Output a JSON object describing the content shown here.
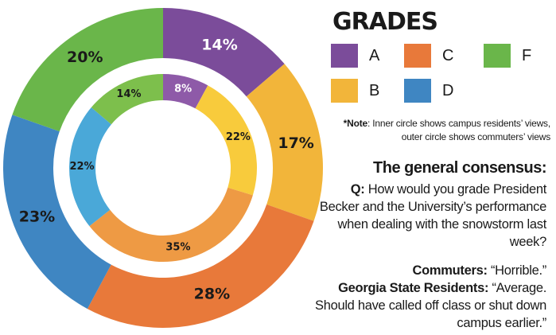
{
  "legend": {
    "title": "GRADES",
    "items": [
      {
        "label": "A",
        "color": "#7b4c9a"
      },
      {
        "label": "C",
        "color": "#e8793a"
      },
      {
        "label": "F",
        "color": "#6ab64a"
      },
      {
        "label": "B",
        "color": "#f2b53a"
      },
      {
        "label": "D",
        "color": "#3f86c2"
      }
    ]
  },
  "note": {
    "prefix": "*Note",
    "text": ": Inner circle shows campus residents’ views, outer circle shows commuters’ views"
  },
  "consensus": {
    "heading": "The general consensus:",
    "q_prefix": "Q:",
    "question": " How would you grade President Becker and the University’s performance when dealing with the snowstorm last week?",
    "commuters_prefix": "Commuters:",
    "commuters_answer": " “Horrible.”",
    "residents_prefix": "Georgia State Residents:",
    "residents_answer": " “Average. Should have called off class or shut down campus earlier.”"
  },
  "chart_data": {
    "type": "donut",
    "categories": [
      "A",
      "B",
      "C",
      "D",
      "F"
    ],
    "colors": {
      "outer": [
        "#7b4c9a",
        "#f2b53a",
        "#e8793a",
        "#3f86c2",
        "#6ab64a"
      ],
      "inner": [
        "#8e5aa8",
        "#f8cb3c",
        "#ee9a44",
        "#4aa8d8",
        "#7dbf4c"
      ]
    },
    "series": [
      {
        "values": [
          14,
          17,
          28,
          23,
          20
        ],
        "labels": [
          "14%",
          "17%",
          "28%",
          "23%",
          "20%"
        ]
      },
      {
        "values": [
          8,
          22,
          35,
          22,
          14
        ],
        "labels": [
          "8%",
          "22%",
          "35%",
          "22%",
          "14%"
        ]
      }
    ]
  }
}
